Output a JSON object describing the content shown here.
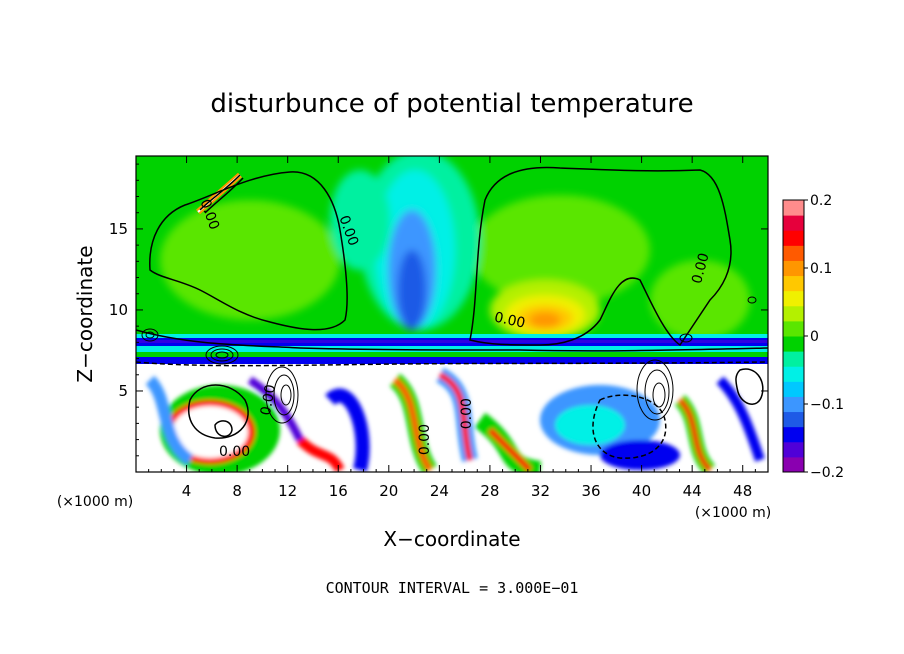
{
  "chart_data": {
    "type": "heatmap",
    "title": "disturbunce of potential temperature",
    "xlabel": "X−coordinate",
    "ylabel": "Z−coordinate",
    "x_unit": "(×1000 m)",
    "y_unit": "(×1000 m)",
    "xlim": [
      0,
      50
    ],
    "ylim": [
      0,
      19.5
    ],
    "x_ticks": [
      "4",
      "8",
      "12",
      "16",
      "20",
      "24",
      "28",
      "32",
      "36",
      "40",
      "44",
      "48"
    ],
    "y_ticks": [
      "5",
      "10",
      "15"
    ],
    "colorbar": {
      "range": [
        -0.2,
        0.2
      ],
      "tick_labels": [
        "0.2",
        "0.1",
        "0",
        "−0.1",
        "−0.2"
      ],
      "colors": [
        "#8a00b0",
        "#5000d8",
        "#0000f0",
        "#1e5ae6",
        "#3c96ff",
        "#00c8ff",
        "#00f0e6",
        "#00f0a0",
        "#00d200",
        "#5ae600",
        "#b4f000",
        "#f0f000",
        "#ffc800",
        "#ff9600",
        "#ff5a00",
        "#ff0000",
        "#e6003c",
        "#ff8c8c"
      ]
    },
    "contour_labels": [
      "0.00",
      "0.00",
      "0.00",
      "0.00",
      "0.00",
      "0.00",
      "0.00",
      "0.00"
    ],
    "footnote": "CONTOUR INTERVAL = 3.000E−01"
  }
}
